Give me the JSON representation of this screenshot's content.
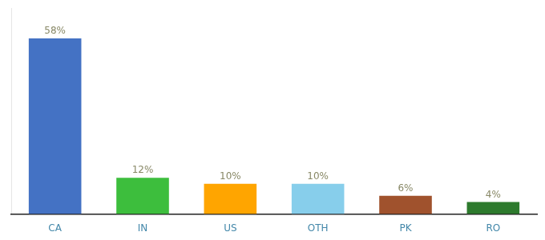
{
  "chart_data": {
    "type": "bar",
    "categories": [
      "CA",
      "IN",
      "US",
      "OTH",
      "PK",
      "RO"
    ],
    "values": [
      58,
      12,
      10,
      10,
      6,
      4
    ],
    "value_labels": [
      "58%",
      "12%",
      "10%",
      "10%",
      "6%",
      "4%"
    ],
    "colors": [
      "#4472C4",
      "#3DBE3D",
      "#FFA500",
      "#87CEEB",
      "#A0522D",
      "#2D7A2D"
    ],
    "ylim": [
      0,
      68
    ],
    "data_labels": true,
    "tick_labels": "x",
    "grid": false
  }
}
